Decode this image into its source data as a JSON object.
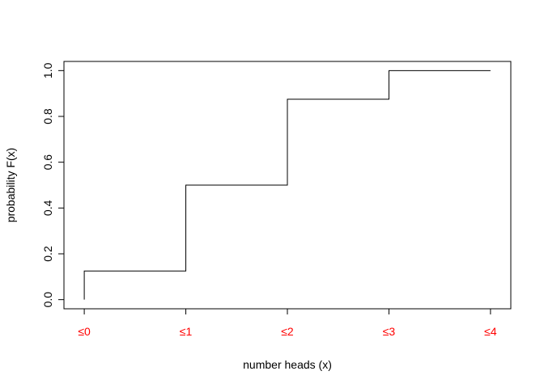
{
  "chart_data": {
    "type": "line",
    "step": true,
    "title": "",
    "xlabel": "number heads (x)",
    "ylabel": "probability F(x)",
    "x": [
      0,
      1,
      2,
      3,
      4
    ],
    "series": [
      {
        "values": [
          0.125,
          0.5,
          0.875,
          1.0,
          1.0
        ]
      }
    ],
    "xlim": [
      -0.2,
      4.2
    ],
    "ylim": [
      -0.04,
      1.04
    ],
    "x_tick_values": [
      0,
      1,
      2,
      3,
      4
    ],
    "x_tick_labels": [
      "≤0",
      "≤1",
      "≤2",
      "≤3",
      "≤4"
    ],
    "y_tick_values": [
      0.0,
      0.2,
      0.4,
      0.6,
      0.8,
      1.0
    ],
    "y_tick_labels": [
      "0.0",
      "0.2",
      "0.4",
      "0.6",
      "0.8",
      "1.0"
    ],
    "grid": false,
    "legend": "none",
    "colors": {
      "line": "#000000",
      "x_tick_label": "#ff0000",
      "axes": "#000000"
    }
  }
}
